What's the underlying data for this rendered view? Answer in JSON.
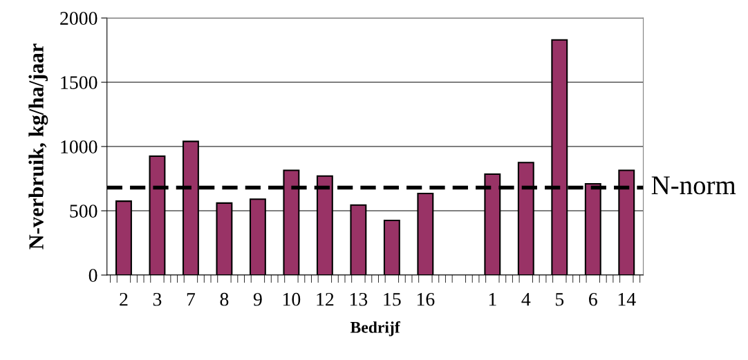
{
  "chart_data": {
    "type": "bar",
    "xlabel": "Bedrijf",
    "ylabel": "N-verbruik, kg/ha/jaar",
    "categories": [
      "2",
      "3",
      "7",
      "8",
      "9",
      "10",
      "12",
      "13",
      "15",
      "16",
      null,
      "1",
      "4",
      "5",
      "6",
      "14"
    ],
    "values": [
      575,
      925,
      1040,
      560,
      590,
      815,
      770,
      545,
      425,
      635,
      null,
      785,
      875,
      1830,
      710,
      815
    ],
    "color": "#993366",
    "ylim": [
      0,
      2000
    ],
    "yticks": [
      0,
      500,
      1000,
      1500,
      2000
    ],
    "grid": "y",
    "legend": false,
    "ref_lines": [
      {
        "axis": "y",
        "value": 680,
        "label": "N-norm",
        "color": "#000000",
        "line_style": "dashed"
      }
    ]
  }
}
